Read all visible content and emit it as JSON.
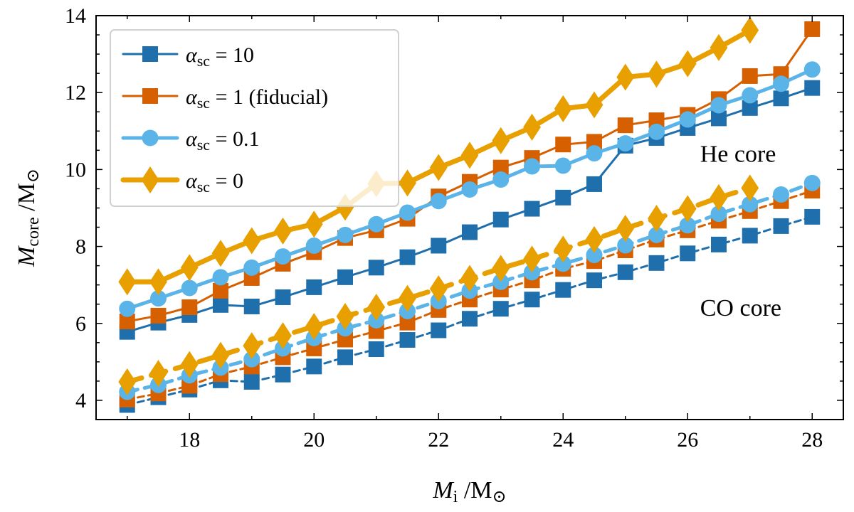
{
  "chart_data": {
    "type": "line",
    "xlabel": {
      "main": "M",
      "sub": "i",
      "unit": " /M",
      "unit_sub": "⊙"
    },
    "ylabel": {
      "main": "M",
      "sub": "core",
      "unit": " /M",
      "unit_sub": "⊙"
    },
    "xlim": [
      16.5,
      28.5
    ],
    "ylim": [
      3.5,
      14.0
    ],
    "xticks": [
      18,
      20,
      22,
      24,
      26,
      28
    ],
    "yticks": [
      4,
      6,
      8,
      10,
      12,
      14
    ],
    "legend": {
      "placement": "top-left",
      "entries": [
        {
          "symbol": "α",
          "sub": "sc",
          "text": " = 10"
        },
        {
          "symbol": "α",
          "sub": "sc",
          "text": " = 1 (fiducial)"
        },
        {
          "symbol": "α",
          "sub": "sc",
          "text": " = 0.1"
        },
        {
          "symbol": "α",
          "sub": "sc",
          "text": " = 0"
        }
      ]
    },
    "annotations": [
      {
        "text": "He core",
        "x": 26.2,
        "y": 10.2
      },
      {
        "text": "CO core",
        "x": 26.2,
        "y": 6.2
      }
    ],
    "series": [
      {
        "name": "α_sc = 10, He core",
        "color": "#1f6fad",
        "marker": "square",
        "dashed": false,
        "width": 3,
        "x": [
          17,
          17.5,
          18,
          18.5,
          19,
          19.5,
          20,
          20.5,
          21,
          21.5,
          22,
          22.5,
          23,
          23.5,
          24,
          24.5,
          25,
          25.5,
          26,
          26.5,
          27,
          27.5,
          28
        ],
        "y": [
          5.78,
          6.02,
          6.22,
          6.48,
          6.44,
          6.68,
          6.94,
          7.2,
          7.45,
          7.72,
          8.02,
          8.37,
          8.7,
          8.98,
          9.27,
          9.62,
          10.62,
          10.82,
          11.08,
          11.33,
          11.6,
          11.85,
          12.12
        ]
      },
      {
        "name": "α_sc = 1 (fiducial), He core",
        "color": "#d65f00",
        "marker": "square",
        "dashed": false,
        "width": 3,
        "x": [
          17,
          17.5,
          18,
          18.5,
          19,
          19.5,
          20,
          20.5,
          21,
          21.5,
          22,
          22.5,
          23,
          23.5,
          24,
          24.5,
          25,
          25.5,
          26,
          26.5,
          27,
          27.5,
          28
        ],
        "y": [
          6.05,
          6.2,
          6.42,
          6.85,
          7.18,
          7.55,
          7.85,
          8.22,
          8.42,
          8.72,
          9.3,
          9.68,
          10.05,
          10.3,
          10.65,
          10.72,
          11.15,
          11.28,
          11.42,
          11.83,
          12.43,
          12.48,
          13.65
        ]
      },
      {
        "name": "α_sc = 0.1, He core",
        "color": "#5ab4e8",
        "marker": "circle",
        "dashed": false,
        "width": 5,
        "x": [
          17,
          17.5,
          18,
          18.5,
          19,
          19.5,
          20,
          20.5,
          21,
          21.5,
          22,
          22.5,
          23,
          23.5,
          24,
          24.5,
          25,
          25.5,
          26,
          26.5,
          27,
          27.5,
          28
        ],
        "y": [
          6.38,
          6.65,
          6.92,
          7.2,
          7.45,
          7.74,
          8.02,
          8.3,
          8.58,
          8.88,
          9.18,
          9.48,
          9.74,
          10.08,
          10.1,
          10.42,
          10.68,
          10.98,
          11.3,
          11.67,
          11.93,
          12.23,
          12.6
        ]
      },
      {
        "name": "α_sc = 0, He core",
        "color": "#e89f00",
        "marker": "diamond",
        "dashed": false,
        "width": 7,
        "x": [
          17,
          17.5,
          18,
          18.5,
          19,
          19.5,
          20,
          20.5,
          21,
          21.5,
          22,
          22.5,
          23,
          23.5,
          24,
          24.5,
          25,
          25.5,
          26,
          26.5,
          27
        ],
        "y": [
          7.08,
          7.08,
          7.45,
          7.82,
          8.15,
          8.4,
          8.58,
          9.02,
          9.63,
          9.65,
          10.05,
          10.37,
          10.75,
          11.1,
          11.58,
          11.68,
          12.4,
          12.48,
          12.75,
          13.17,
          13.62
        ]
      },
      {
        "name": "α_sc = 10, CO core",
        "color": "#1f6fad",
        "marker": "square",
        "dashed": true,
        "width": 3,
        "x": [
          17,
          17.5,
          18,
          18.5,
          19,
          19.5,
          20,
          20.5,
          21,
          21.5,
          22,
          22.5,
          23,
          23.5,
          24,
          24.5,
          25,
          25.5,
          26,
          26.5,
          27,
          27.5,
          28
        ],
        "y": [
          3.88,
          4.08,
          4.28,
          4.52,
          4.48,
          4.67,
          4.88,
          5.12,
          5.33,
          5.57,
          5.82,
          6.12,
          6.38,
          6.62,
          6.87,
          7.12,
          7.33,
          7.57,
          7.82,
          8.05,
          8.28,
          8.53,
          8.77
        ]
      },
      {
        "name": "α_sc = 1 (fiducial), CO core",
        "color": "#d65f00",
        "marker": "square",
        "dashed": true,
        "width": 3,
        "x": [
          17,
          17.5,
          18,
          18.5,
          19,
          19.5,
          20,
          20.5,
          21,
          21.5,
          22,
          22.5,
          23,
          23.5,
          24,
          24.5,
          25,
          25.5,
          26,
          26.5,
          27,
          27.5,
          28
        ],
        "y": [
          4.02,
          4.18,
          4.38,
          4.68,
          4.88,
          5.12,
          5.35,
          5.58,
          5.8,
          6.02,
          6.35,
          6.62,
          6.88,
          7.12,
          7.42,
          7.62,
          7.9,
          8.18,
          8.42,
          8.67,
          8.92,
          9.18,
          9.45
        ]
      },
      {
        "name": "α_sc = 0.1, CO core",
        "color": "#5ab4e8",
        "marker": "circle",
        "dashed": true,
        "width": 5,
        "x": [
          17,
          17.5,
          18,
          18.5,
          19,
          19.5,
          20,
          20.5,
          21,
          21.5,
          22,
          22.5,
          23,
          23.5,
          24,
          24.5,
          25,
          25.5,
          26,
          26.5,
          27,
          27.5,
          28
        ],
        "y": [
          4.22,
          4.4,
          4.65,
          4.85,
          5.07,
          5.35,
          5.62,
          5.87,
          6.08,
          6.32,
          6.58,
          6.85,
          7.08,
          7.33,
          7.55,
          7.78,
          8.03,
          8.3,
          8.55,
          8.85,
          9.1,
          9.35,
          9.65
        ]
      },
      {
        "name": "α_sc = 0, CO core",
        "color": "#e89f00",
        "marker": "diamond",
        "dashed": true,
        "width": 7,
        "x": [
          17,
          17.5,
          18,
          18.5,
          19,
          19.5,
          20,
          20.5,
          21,
          21.5,
          22,
          22.5,
          23,
          23.5,
          24,
          24.5,
          25,
          25.5,
          26,
          26.5,
          27
        ],
        "y": [
          4.48,
          4.7,
          4.93,
          5.17,
          5.42,
          5.68,
          5.92,
          6.18,
          6.42,
          6.65,
          6.9,
          7.17,
          7.43,
          7.67,
          7.93,
          8.18,
          8.47,
          8.73,
          8.98,
          9.27,
          9.52
        ]
      }
    ]
  }
}
